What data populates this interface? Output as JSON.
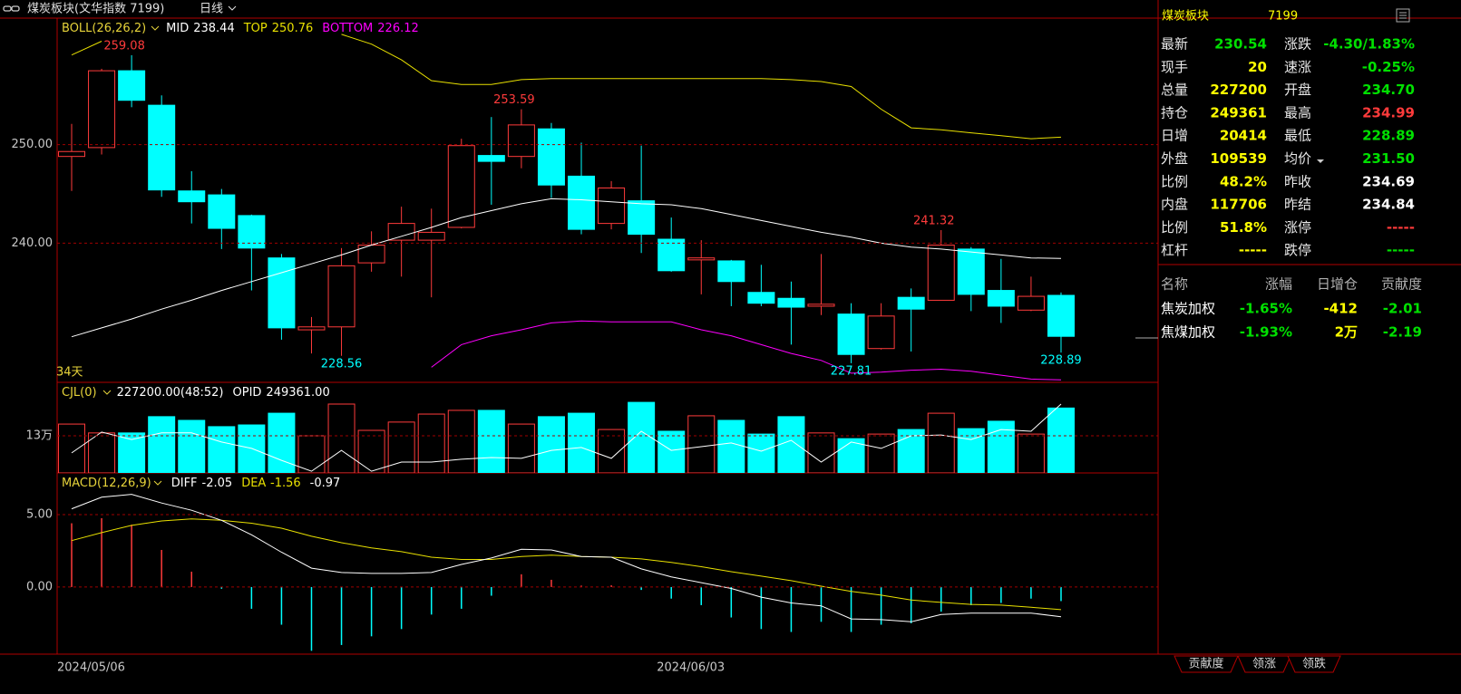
{
  "header": {
    "title": "煤炭板块(文华指数 7199)",
    "period": "日线"
  },
  "chart": {
    "dates": [
      "2024/05/06",
      null,
      null,
      null,
      null,
      null,
      null,
      null,
      null,
      null,
      null,
      null,
      null,
      null,
      null,
      null,
      null,
      null,
      null,
      null,
      "2024/06/03",
      null,
      null,
      null,
      null,
      null,
      null,
      null,
      null,
      null,
      null,
      null,
      null,
      null
    ],
    "days_label": "34天",
    "price": {
      "ylim": [
        225.87,
        262.75
      ],
      "yticks": [
        {
          "value": 240,
          "label": "240.00"
        },
        {
          "value": 250,
          "label": "250.00"
        }
      ],
      "up_color": "#ff3b3b",
      "down_color": "#00ffff",
      "open": [
        248.8,
        249.7,
        257.5,
        254.0,
        245.3,
        244.9,
        242.8,
        238.5,
        231.2,
        231.5,
        238.0,
        240.3,
        240.3,
        241.6,
        248.9,
        248.8,
        251.6,
        246.8,
        242.0,
        244.3,
        240.4,
        238.3,
        238.2,
        235.0,
        234.4,
        233.6,
        232.8,
        229.3,
        234.5,
        234.2,
        239.4,
        235.2,
        233.2,
        234.7
      ],
      "close": [
        249.3,
        257.5,
        254.5,
        245.4,
        244.2,
        241.5,
        239.5,
        231.4,
        231.5,
        237.7,
        239.8,
        242.0,
        241.1,
        249.9,
        248.3,
        252.0,
        245.9,
        241.4,
        245.6,
        240.9,
        237.2,
        238.5,
        236.1,
        233.9,
        233.5,
        233.8,
        228.7,
        232.6,
        233.3,
        239.8,
        234.8,
        233.6,
        234.6,
        230.54
      ],
      "high": [
        252.1,
        257.7,
        259.08,
        255.0,
        247.3,
        245.5,
        242.9,
        238.9,
        232.5,
        239.5,
        241.2,
        243.7,
        243.5,
        250.6,
        252.8,
        253.59,
        252.2,
        250.2,
        246.3,
        249.9,
        242.6,
        240.3,
        238.3,
        237.8,
        236.1,
        238.9,
        233.9,
        233.9,
        235.4,
        241.32,
        239.6,
        238.4,
        236.6,
        234.99
      ],
      "low": [
        245.3,
        249.0,
        253.8,
        244.7,
        242.0,
        239.4,
        235.2,
        230.2,
        228.8,
        228.56,
        237.1,
        236.6,
        234.5,
        241.5,
        243.9,
        247.6,
        244.6,
        240.9,
        241.4,
        239.0,
        237.1,
        234.8,
        233.6,
        233.6,
        229.7,
        232.7,
        227.81,
        229.2,
        229.0,
        234.2,
        233.1,
        231.9,
        233.1,
        228.89
      ]
    },
    "boll": {
      "name": "BOLL(26,26,2)",
      "color": "#e6d33a",
      "mid": {
        "name": "MID",
        "color": "#ffffff",
        "values": [
          230.5,
          231.4,
          232.3,
          233.3,
          234.2,
          235.2,
          236.1,
          237.0,
          237.9,
          238.8,
          239.8,
          240.7,
          241.6,
          242.6,
          243.3,
          244.0,
          244.5,
          244.4,
          244.2,
          244.0,
          243.9,
          243.5,
          242.9,
          242.3,
          241.7,
          241.1,
          240.6,
          240.0,
          239.6,
          239.4,
          239.1,
          238.8,
          238.5,
          238.44
        ]
      },
      "top": {
        "name": "TOP",
        "color": "#e8e000",
        "values": [
          259.1,
          260.5,
          null,
          null,
          null,
          null,
          null,
          null,
          null,
          261.2,
          260.2,
          258.6,
          256.5,
          256.1,
          256.1,
          256.6,
          256.7,
          256.7,
          256.7,
          256.7,
          256.7,
          256.7,
          256.7,
          256.7,
          256.6,
          256.4,
          255.9,
          253.6,
          251.7,
          251.5,
          251.2,
          250.9,
          250.6,
          250.76
        ]
      },
      "bottom": {
        "name": "BOTTOM",
        "color": "#ff00ff",
        "values": [
          null,
          null,
          null,
          null,
          null,
          null,
          null,
          null,
          null,
          null,
          null,
          null,
          227.4,
          229.7,
          230.6,
          231.2,
          231.9,
          232.1,
          232.0,
          232.0,
          232.0,
          231.2,
          230.6,
          229.7,
          228.8,
          228.1,
          226.8,
          226.9,
          227.1,
          227.2,
          227.0,
          226.6,
          226.2,
          226.12
        ]
      }
    },
    "volume": {
      "name": "CJL(0)",
      "color": "#e6d33a",
      "readout": "227200.00(48:52)",
      "opid_name": "OPID",
      "opid": "249361.00",
      "ylim": [
        0,
        313900
      ],
      "yticks": [
        {
          "value": 130000,
          "label": "13万"
        }
      ],
      "values": [
        171000,
        140000,
        140000,
        197000,
        184000,
        162000,
        168000,
        209000,
        130000,
        241000,
        149000,
        178000,
        206000,
        219000,
        219000,
        171000,
        197000,
        209000,
        152000,
        247000,
        146000,
        200000,
        184000,
        136000,
        197000,
        140000,
        120000,
        136000,
        152000,
        209000,
        155000,
        181000,
        136000,
        227200
      ],
      "ma": {
        "color": "#ffffff",
        "values": [
          70000,
          143000,
          117000,
          140000,
          140000,
          108000,
          86000,
          44000,
          6000,
          79000,
          6000,
          38000,
          38000,
          48000,
          54000,
          51000,
          79000,
          89000,
          51000,
          146000,
          79000,
          92000,
          105000,
          76000,
          114000,
          38000,
          108000,
          86000,
          130000,
          133000,
          117000,
          152000,
          146000,
          241000
        ]
      }
    },
    "macd": {
      "name": "MACD(12,26,9)",
      "color": "#e6d33a",
      "value_color": "#ffffff",
      "ylim": [
        -4.63,
        7.81
      ],
      "yticks": [
        {
          "value": 0,
          "label": "0.00"
        },
        {
          "value": 5,
          "label": "5.00"
        }
      ],
      "values": [
        4.4,
        4.75,
        4.3,
        2.56,
        1.06,
        -0.12,
        -1.5,
        -2.6,
        -4.4,
        -4.0,
        -3.4,
        -2.9,
        -1.9,
        -1.5,
        -0.6,
        0.88,
        0.5,
        0.1,
        0.12,
        -0.2,
        -0.8,
        -1.25,
        -2.1,
        -2.9,
        -3.1,
        -2.4,
        -3.1,
        -2.6,
        -2.5,
        -1.7,
        -1.25,
        -1.1,
        -0.8,
        -0.97
      ],
      "diff": {
        "name": "DIFF",
        "color": "#ffffff",
        "values": [
          5.4,
          6.2,
          6.4,
          5.8,
          5.3,
          4.6,
          3.6,
          2.4,
          1.3,
          1.0,
          0.94,
          0.94,
          1.0,
          1.56,
          2.0,
          2.6,
          2.56,
          2.1,
          2.06,
          1.25,
          0.7,
          0.3,
          -0.1,
          -0.7,
          -1.1,
          -1.3,
          -2.2,
          -2.25,
          -2.4,
          -1.9,
          -1.8,
          -1.8,
          -1.8,
          -2.05
        ]
      },
      "dea": {
        "name": "DEA",
        "color": "#e8e000",
        "values": [
          3.2,
          3.75,
          4.25,
          4.56,
          4.7,
          4.6,
          4.4,
          4.06,
          3.5,
          3.06,
          2.7,
          2.44,
          2.06,
          1.9,
          1.9,
          2.1,
          2.2,
          2.1,
          2.06,
          1.94,
          1.7,
          1.4,
          1.06,
          0.75,
          0.44,
          0.06,
          -0.3,
          -0.56,
          -0.9,
          -1.06,
          -1.2,
          -1.25,
          -1.4,
          -1.56
        ]
      }
    }
  },
  "quote": {
    "name": "煤炭板块",
    "code": "7199",
    "title_color": "#ffff00",
    "rows": [
      [
        {
          "text": "最新"
        },
        {
          "text": "230.54",
          "color": "#00e000"
        },
        {
          "text": "涨跌"
        },
        {
          "text": "-4.30/1.83%",
          "color": "#00e000"
        }
      ],
      [
        {
          "text": "现手"
        },
        {
          "text": "20",
          "color": "#ffff00"
        },
        {
          "text": "速涨"
        },
        {
          "text": "-0.25%",
          "color": "#00e000"
        }
      ],
      [
        {
          "text": "总量"
        },
        {
          "text": "227200",
          "color": "#ffff00"
        },
        {
          "text": "开盘"
        },
        {
          "text": "234.70",
          "color": "#00e000"
        }
      ],
      [
        {
          "text": "持仓"
        },
        {
          "text": "249361",
          "color": "#ffff00"
        },
        {
          "text": "最高"
        },
        {
          "text": "234.99",
          "color": "#ff3b3b"
        }
      ],
      [
        {
          "text": "日增"
        },
        {
          "text": "20414",
          "color": "#ffff00"
        },
        {
          "text": "最低"
        },
        {
          "text": "228.89",
          "color": "#00e000"
        }
      ],
      [
        {
          "text": "外盘"
        },
        {
          "text": "109539",
          "color": "#ffff00"
        },
        {
          "text": "均价"
        },
        {
          "text": "231.50",
          "color": "#00e000"
        }
      ],
      [
        {
          "text": "比例"
        },
        {
          "text": "48.2%",
          "color": "#ffff00"
        },
        {
          "text": "昨收"
        },
        {
          "text": "234.69",
          "color": "#ffffff"
        }
      ],
      [
        {
          "text": "内盘"
        },
        {
          "text": "117706",
          "color": "#ffff00"
        },
        {
          "text": "昨结"
        },
        {
          "text": "234.84",
          "color": "#ffffff"
        }
      ],
      [
        {
          "text": "比例"
        },
        {
          "text": "51.8%",
          "color": "#ffff00"
        },
        {
          "text": "涨停"
        },
        {
          "text": "-----",
          "color": "#ff3b3b"
        }
      ],
      [
        {
          "text": "杠杆"
        },
        {
          "text": "-----",
          "color": "#ffff00"
        },
        {
          "text": "跌停"
        },
        {
          "text": "-----",
          "color": "#00e000"
        }
      ]
    ]
  },
  "constituents": {
    "headers": [
      "名称",
      "涨幅",
      "日增仓",
      "贡献度"
    ],
    "colors": [
      "#ffffff",
      "#00e000",
      "#ffff00",
      "#00e000"
    ],
    "rows": [
      [
        "焦炭加权",
        "-1.65%",
        "-412",
        "-2.01"
      ],
      [
        "焦煤加权",
        "-1.93%",
        "2万",
        "-2.19"
      ]
    ]
  },
  "tabs": [
    "贡献度",
    "领涨",
    "领跌"
  ]
}
